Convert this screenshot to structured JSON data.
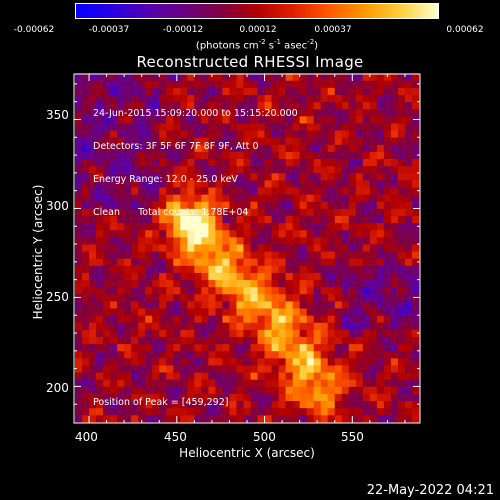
{
  "colorbar": {
    "ticks": [
      "-0.00062",
      "-0.00037",
      "-0.00012",
      "0.00012",
      "0.00037",
      "0.00062"
    ],
    "units_prefix": "(photons cm",
    "units_exp1": "-2",
    "units_mid": " s",
    "units_exp2": "-1",
    "units_mid2": " asec",
    "units_exp3": "-2",
    "units_suffix": ")"
  },
  "title": "Reconstructed RHESSI Image",
  "annotations": [
    "24-Jun-2015 15:09:20.000 to 15:15:20.000",
    "Detectors: 3F 5F 6F 7F 8F 9F, Att 0",
    "Energy Range: 12.0 - 25.0 keV",
    "Clean      Total counts: 1.78E+04"
  ],
  "peak_label": "Position of Peak = [459,292]",
  "axes": {
    "x_ticks": [
      "400",
      "450",
      "500",
      "550"
    ],
    "y_ticks": [
      "200",
      "250",
      "300",
      "350"
    ],
    "x_title": "Heliocentric X (arcsec)",
    "y_title": "Heliocentric Y (arcsec)"
  },
  "timestamp": "22-May-2022 04:21",
  "chart_data": {
    "type": "heatmap",
    "title": "Reconstructed RHESSI Image",
    "xlabel": "Heliocentric X (arcsec)",
    "ylabel": "Heliocentric Y (arcsec)",
    "xlim": [
      392,
      588
    ],
    "ylim": [
      180,
      375
    ],
    "colorbar_range": [
      -0.00062,
      0.00062
    ],
    "peak": [
      459,
      292
    ],
    "source_ridge": [
      [
        458,
        292
      ],
      [
        472,
        272
      ],
      [
        492,
        252
      ],
      [
        508,
        236
      ],
      [
        522,
        214
      ],
      [
        530,
        200
      ]
    ]
  },
  "colors": {
    "background": "#000000",
    "text": "#ffffff"
  }
}
